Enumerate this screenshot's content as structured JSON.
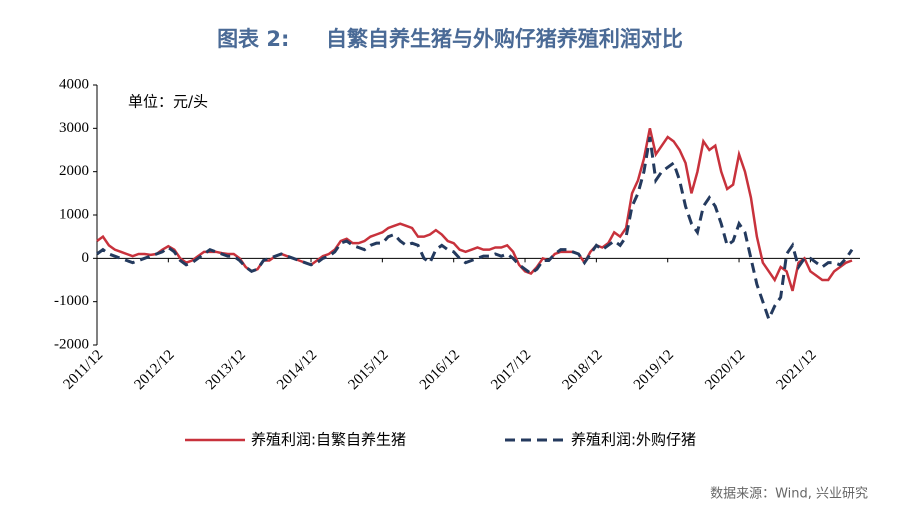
{
  "chart_data": {
    "type": "line",
    "title": "图表 2:     自繁自养生猪与外购仔猪养殖利润对比",
    "annotation": "单位：元/头",
    "source": "数据来源：Wind, 兴业研究",
    "x": [
      "2011/12",
      "2012/01",
      "2012/02",
      "2012/03",
      "2012/04",
      "2012/05",
      "2012/06",
      "2012/07",
      "2012/08",
      "2012/09",
      "2012/10",
      "2012/11",
      "2012/12",
      "2013/01",
      "2013/02",
      "2013/03",
      "2013/04",
      "2013/05",
      "2013/06",
      "2013/07",
      "2013/08",
      "2013/09",
      "2013/10",
      "2013/11",
      "2013/12",
      "2014/01",
      "2014/02",
      "2014/03",
      "2014/04",
      "2014/05",
      "2014/06",
      "2014/07",
      "2014/08",
      "2014/09",
      "2014/10",
      "2014/11",
      "2014/12",
      "2015/01",
      "2015/02",
      "2015/03",
      "2015/04",
      "2015/05",
      "2015/06",
      "2015/07",
      "2015/08",
      "2015/09",
      "2015/10",
      "2015/11",
      "2015/12",
      "2016/01",
      "2016/02",
      "2016/03",
      "2016/04",
      "2016/05",
      "2016/06",
      "2016/07",
      "2016/08",
      "2016/09",
      "2016/10",
      "2016/11",
      "2016/12",
      "2017/01",
      "2017/02",
      "2017/03",
      "2017/04",
      "2017/05",
      "2017/06",
      "2017/07",
      "2017/08",
      "2017/09",
      "2017/10",
      "2017/11",
      "2017/12",
      "2018/01",
      "2018/02",
      "2018/03",
      "2018/04",
      "2018/05",
      "2018/06",
      "2018/07",
      "2018/08",
      "2018/09",
      "2018/10",
      "2018/11",
      "2018/12",
      "2019/01",
      "2019/02",
      "2019/03",
      "2019/04",
      "2019/05",
      "2019/06",
      "2019/07",
      "2019/08",
      "2019/09",
      "2019/10",
      "2019/11",
      "2019/12",
      "2020/01",
      "2020/02",
      "2020/03",
      "2020/04",
      "2020/05",
      "2020/06",
      "2020/07",
      "2020/08",
      "2020/09",
      "2020/10",
      "2020/11",
      "2020/12",
      "2021/01",
      "2021/02",
      "2021/03",
      "2021/04",
      "2021/05",
      "2021/06",
      "2021/07",
      "2021/08",
      "2021/09",
      "2021/10",
      "2021/11",
      "2021/12",
      "2022/01",
      "2022/02",
      "2022/03",
      "2022/04",
      "2022/05",
      "2022/06",
      "2022/07"
    ],
    "series": [
      {
        "name": "养殖利润:自繁自养生猪",
        "color": "#c8323c",
        "dash": false,
        "values": [
          400,
          500,
          300,
          200,
          150,
          100,
          50,
          100,
          100,
          80,
          100,
          200,
          280,
          200,
          0,
          -100,
          -50,
          50,
          150,
          150,
          150,
          120,
          100,
          100,
          0,
          -200,
          -300,
          -250,
          -50,
          -50,
          50,
          100,
          50,
          0,
          -50,
          -100,
          -150,
          -50,
          50,
          100,
          200,
          400,
          450,
          350,
          350,
          400,
          500,
          550,
          600,
          700,
          750,
          800,
          750,
          700,
          500,
          500,
          550,
          650,
          550,
          400,
          350,
          200,
          150,
          200,
          250,
          200,
          200,
          250,
          250,
          300,
          150,
          -150,
          -300,
          -350,
          -200,
          0,
          -50,
          100,
          150,
          150,
          150,
          100,
          -100,
          150,
          300,
          250,
          350,
          600,
          500,
          700,
          1500,
          1800,
          2300,
          3000,
          2400,
          2600,
          2800,
          2700,
          2500,
          2200,
          1500,
          2000,
          2700,
          2500,
          2600,
          2000,
          1600,
          1700,
          2400,
          2000,
          1400,
          500,
          -100,
          -300,
          -500,
          -200,
          -300,
          -750,
          -100,
          0,
          -300,
          -400,
          -500,
          -500,
          -300,
          -200,
          -100,
          -50
        ]
      },
      {
        "name": "养殖利润:外购仔猪",
        "color": "#243a5e",
        "dash": true,
        "values": [
          100,
          200,
          100,
          50,
          0,
          -50,
          -100,
          -50,
          0,
          50,
          100,
          150,
          250,
          150,
          -50,
          -150,
          -100,
          0,
          100,
          200,
          150,
          100,
          50,
          50,
          -50,
          -200,
          -300,
          -250,
          -50,
          0,
          50,
          100,
          50,
          0,
          -50,
          -100,
          -150,
          -100,
          0,
          50,
          150,
          350,
          400,
          300,
          250,
          200,
          300,
          350,
          350,
          500,
          550,
          400,
          300,
          350,
          300,
          0,
          -100,
          200,
          300,
          200,
          150,
          0,
          -100,
          -50,
          0,
          50,
          50,
          100,
          50,
          100,
          0,
          -150,
          -250,
          -350,
          -250,
          -50,
          -50,
          100,
          200,
          200,
          150,
          100,
          -100,
          100,
          300,
          200,
          300,
          400,
          300,
          500,
          1200,
          1500,
          2000,
          2800,
          1800,
          2000,
          2100,
          2200,
          1800,
          1200,
          800,
          600,
          1200,
          1400,
          1200,
          800,
          300,
          400,
          800,
          600,
          0,
          -600,
          -1000,
          -1400,
          -1100,
          -900,
          100,
          300,
          -200,
          0,
          0,
          -100,
          -200,
          -100,
          -100,
          -150,
          0,
          200
        ]
      }
    ],
    "xticks": [
      "2011/12",
      "2012/12",
      "2013/12",
      "2014/12",
      "2015/12",
      "2016/12",
      "2017/12",
      "2018/12",
      "2019/12",
      "2020/12",
      "2021/12"
    ],
    "ylim": [
      -2000,
      4000
    ],
    "yticks": [
      -2000,
      -1000,
      0,
      1000,
      2000,
      3000,
      4000
    ],
    "legend": "bottom"
  }
}
